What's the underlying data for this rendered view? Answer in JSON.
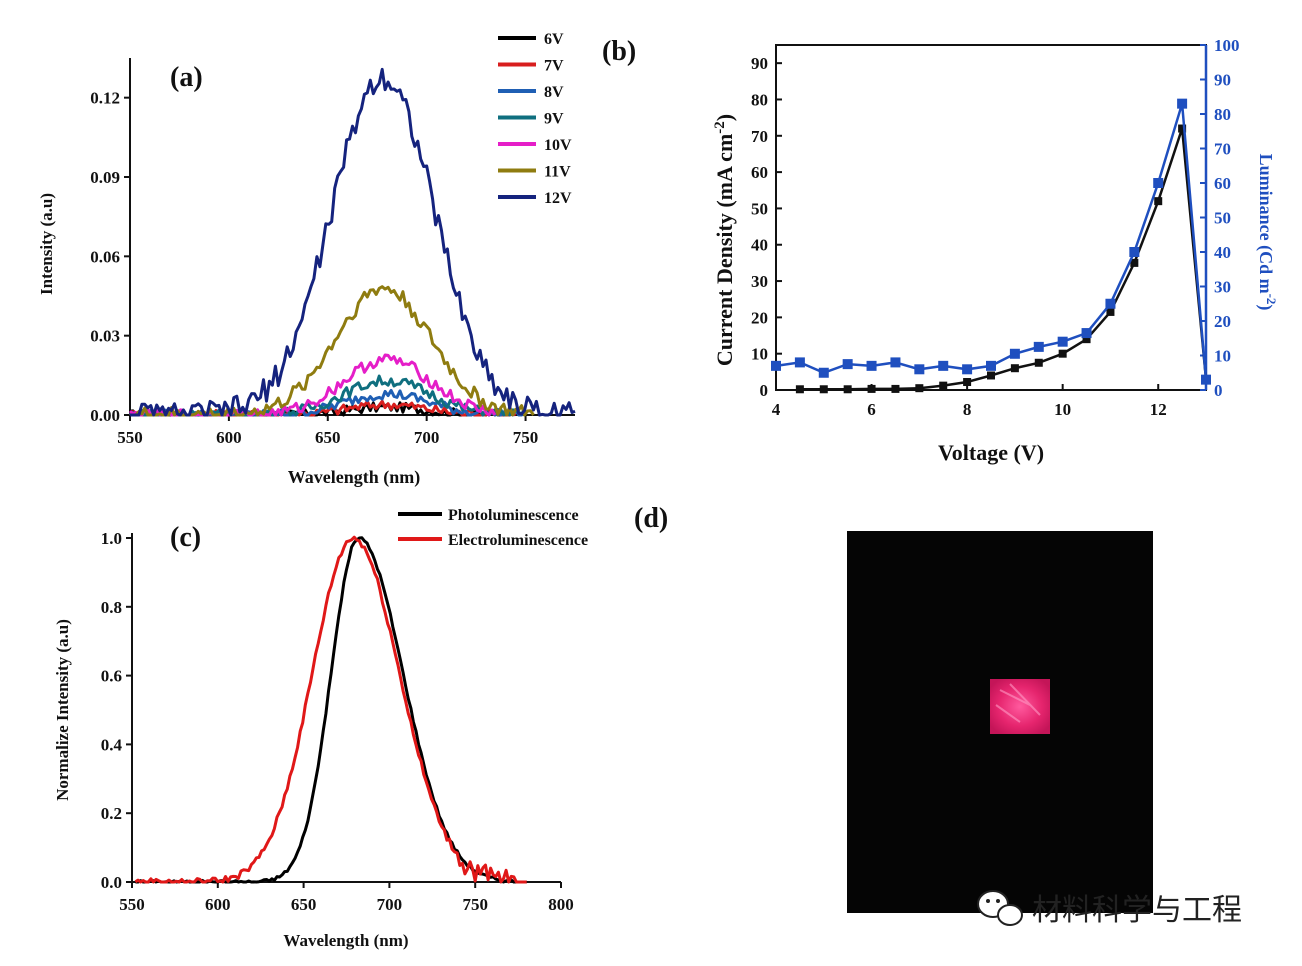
{
  "panels": {
    "a": "(a)",
    "b": "(b)",
    "c": "(c)",
    "d": "(d)"
  },
  "watermark": "材料科学与工程",
  "chart_data": [
    {
      "id": "a",
      "type": "line",
      "xlabel": "Wavelength (nm)",
      "ylabel": "Intensity (a.u)",
      "xlim": [
        550,
        775
      ],
      "ylim": [
        0,
        0.135
      ],
      "xticks": [
        "550",
        "600",
        "650",
        "700",
        "750"
      ],
      "yticks": [
        "0.00",
        "0.03",
        "0.06",
        "0.09",
        "0.12"
      ],
      "legend_position": "top-right-outside",
      "series": [
        {
          "name": "6V",
          "color": "#000000",
          "peak": 0.003,
          "center": 680,
          "sigma": 20,
          "x_end": 740
        },
        {
          "name": "7V",
          "color": "#d81e1e",
          "peak": 0.004,
          "center": 680,
          "sigma": 20,
          "x_end": 745
        },
        {
          "name": "8V",
          "color": "#1f5fb4",
          "peak": 0.008,
          "center": 680,
          "sigma": 21,
          "x_end": 750
        },
        {
          "name": "9V",
          "color": "#0f6f7f",
          "peak": 0.013,
          "center": 680,
          "sigma": 22,
          "x_end": 750
        },
        {
          "name": "10V",
          "color": "#e51ec8",
          "peak": 0.021,
          "center": 680,
          "sigma": 22,
          "x_end": 735
        },
        {
          "name": "11V",
          "color": "#8f7c10",
          "peak": 0.048,
          "center": 678,
          "sigma": 24,
          "x_end": 755
        },
        {
          "name": "12V",
          "color": "#15237e",
          "peak": 0.128,
          "center": 678,
          "sigma": 26,
          "x_end": 775
        }
      ]
    },
    {
      "id": "b",
      "type": "line",
      "xlabel": "Voltage (V)",
      "ylabel_left": "Current Density (mA cm",
      "ylabel_left_sup": "-2",
      "ylabel_left_close": ")",
      "ylabel_right": "Luminance (Cd m",
      "ylabel_right_sup": "-2",
      "ylabel_right_close": ")",
      "xlim": [
        4,
        13
      ],
      "ylim_left": [
        0,
        95
      ],
      "ylim_right": [
        0,
        100
      ],
      "xticks": [
        "4",
        "6",
        "8",
        "10",
        "12"
      ],
      "yticks_left": [
        "0",
        "10",
        "20",
        "30",
        "40",
        "50",
        "60",
        "70",
        "80",
        "90"
      ],
      "yticks_right": [
        "0",
        "10",
        "20",
        "30",
        "40",
        "50",
        "60",
        "70",
        "80",
        "90",
        "100"
      ],
      "series": [
        {
          "name": "Current Density",
          "axis": "left",
          "color": "#111111",
          "x": [
            4.5,
            5,
            5.5,
            6,
            6.5,
            7,
            7.5,
            8,
            8.5,
            9,
            9.5,
            10,
            10.5,
            11,
            11.5,
            12,
            12.5,
            13
          ],
          "y": [
            0.2,
            0.2,
            0.2,
            0.3,
            0.3,
            0.5,
            1.2,
            2.2,
            4,
            6,
            7.5,
            10,
            14,
            21.5,
            35,
            52,
            72,
            3
          ]
        },
        {
          "name": "Luminance",
          "axis": "right",
          "color": "#1f4fbf",
          "x": [
            4,
            4.5,
            5,
            5.5,
            6,
            6.5,
            7,
            7.5,
            8,
            8.5,
            9,
            9.5,
            10,
            10.5,
            11,
            11.5,
            12,
            12.5,
            13
          ],
          "y": [
            7,
            8,
            5,
            7.5,
            7,
            8,
            6,
            7,
            6,
            7,
            10.5,
            12.5,
            14,
            16.5,
            25,
            40,
            60,
            83,
            3
          ]
        }
      ]
    },
    {
      "id": "c",
      "type": "line",
      "xlabel": "Wavelength (nm)",
      "ylabel": "Normalize Intensity (a.u)",
      "xlim": [
        550,
        800
      ],
      "ylim": [
        0,
        1.0
      ],
      "xticks": [
        "550",
        "600",
        "650",
        "700",
        "750",
        "800"
      ],
      "yticks": [
        "0.0",
        "0.2",
        "0.4",
        "0.6",
        "0.8",
        "1.0"
      ],
      "legend_position": "top-right",
      "series": [
        {
          "name": "Photoluminescence",
          "color": "#000000",
          "peak": 1.0,
          "center": 682,
          "sigma_left": 16,
          "sigma_right": 26
        },
        {
          "name": "Electroluminescence",
          "color": "#e01818",
          "peak": 1.0,
          "center": 679,
          "sigma_left": 24,
          "sigma_right": 27
        }
      ]
    }
  ]
}
